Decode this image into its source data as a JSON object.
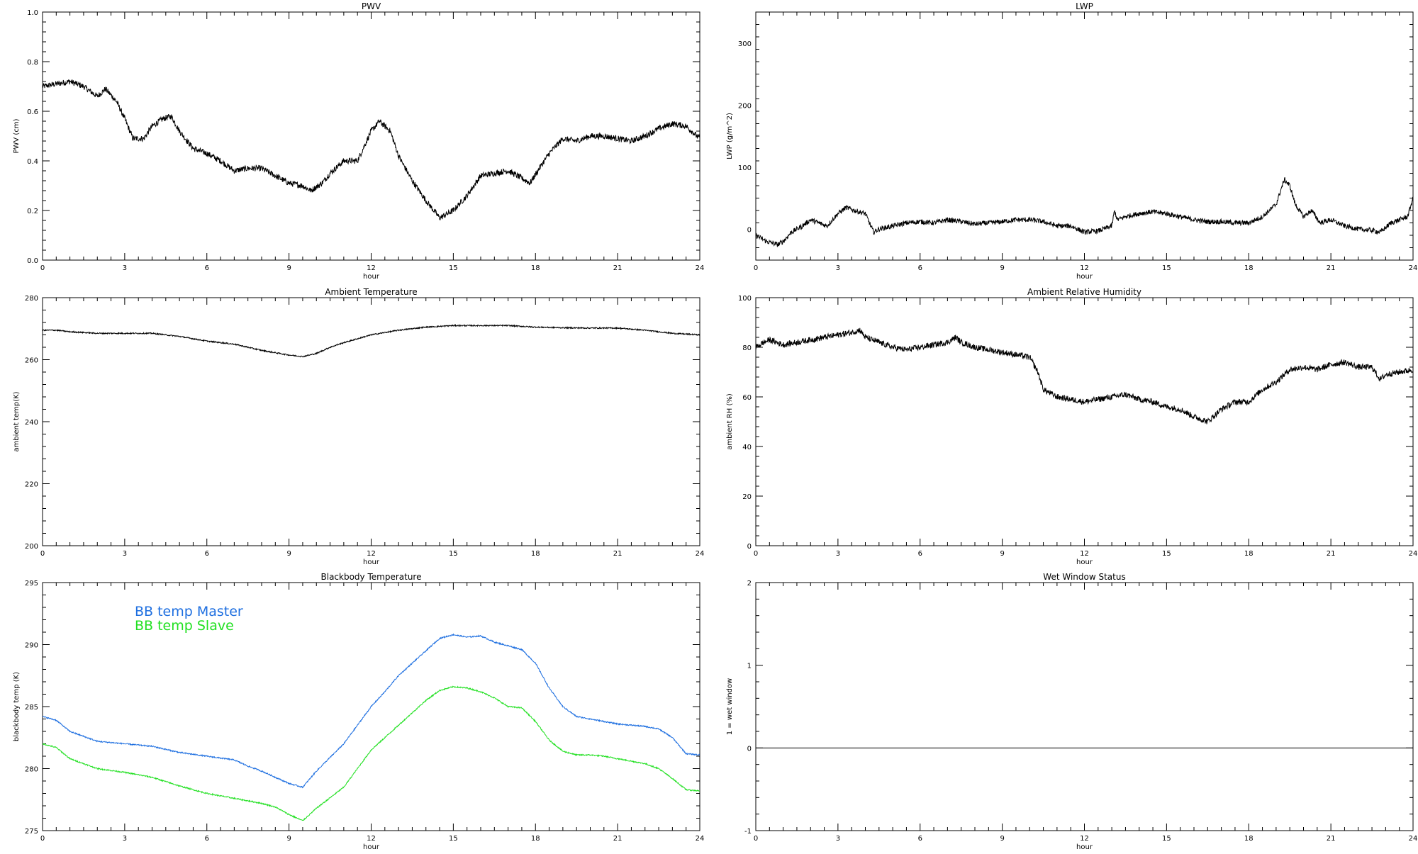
{
  "chart_data": [
    {
      "id": "pwv",
      "type": "line",
      "title": "PWV",
      "xlabel": "hour",
      "ylabel": "PWV (cm)",
      "xlim": [
        0,
        24
      ],
      "ylim": [
        0,
        1
      ],
      "xticks": [
        0,
        3,
        6,
        9,
        12,
        15,
        18,
        21,
        24
      ],
      "yticks": [
        0.0,
        0.2,
        0.4,
        0.6,
        0.8,
        1.0
      ],
      "ytick_labels": [
        "0.0",
        "0.2",
        "0.4",
        "0.6",
        "0.8",
        "1.0"
      ],
      "noise": 0.012,
      "series": [
        {
          "color": "#000000",
          "x": [
            0,
            0.5,
            1.0,
            1.5,
            2.0,
            2.3,
            2.7,
            3.0,
            3.3,
            3.7,
            4.0,
            4.4,
            4.7,
            5.0,
            5.5,
            6.0,
            6.5,
            7.0,
            7.5,
            8.0,
            8.5,
            9.0,
            9.5,
            9.8,
            10.2,
            10.5,
            11.0,
            11.5,
            12.0,
            12.3,
            12.7,
            13.0,
            13.5,
            14.0,
            14.5,
            15.0,
            15.5,
            16.0,
            16.5,
            17.0,
            17.5,
            17.8,
            18.2,
            18.5,
            19.0,
            19.5,
            20.0,
            20.5,
            21.0,
            21.5,
            22.0,
            22.5,
            23.0,
            23.5,
            24.0
          ],
          "y": [
            0.7,
            0.71,
            0.72,
            0.7,
            0.66,
            0.69,
            0.64,
            0.57,
            0.49,
            0.49,
            0.54,
            0.57,
            0.58,
            0.52,
            0.45,
            0.43,
            0.4,
            0.36,
            0.37,
            0.37,
            0.34,
            0.31,
            0.3,
            0.28,
            0.31,
            0.35,
            0.4,
            0.4,
            0.52,
            0.56,
            0.52,
            0.42,
            0.32,
            0.24,
            0.17,
            0.2,
            0.26,
            0.34,
            0.35,
            0.36,
            0.33,
            0.31,
            0.38,
            0.43,
            0.49,
            0.48,
            0.5,
            0.5,
            0.49,
            0.48,
            0.5,
            0.53,
            0.55,
            0.54,
            0.49
          ]
        }
      ]
    },
    {
      "id": "lwp",
      "type": "line",
      "title": "LWP",
      "xlabel": "hour",
      "ylabel": "LWP (g/m^2)",
      "xlim": [
        0,
        24
      ],
      "ylim": [
        -50,
        350
      ],
      "xticks": [
        0,
        3,
        6,
        9,
        12,
        15,
        18,
        21,
        24
      ],
      "yticks": [
        0,
        100,
        200,
        300
      ],
      "ytick_labels": [
        "0",
        "100",
        "200",
        "300"
      ],
      "noise": 4,
      "series": [
        {
          "color": "#000000",
          "x": [
            0,
            0.4,
            0.8,
            1.0,
            1.3,
            1.5,
            1.7,
            2.0,
            2.3,
            2.6,
            3.0,
            3.3,
            3.6,
            4.0,
            4.3,
            4.5,
            5.0,
            5.5,
            6.0,
            6.5,
            7.0,
            7.5,
            8.0,
            8.5,
            9.0,
            9.5,
            10.0,
            10.5,
            11.0,
            11.5,
            12.0,
            12.5,
            13.0,
            13.1,
            13.2,
            13.5,
            14.0,
            14.5,
            15.0,
            15.5,
            16.0,
            16.5,
            17.0,
            17.5,
            18.0,
            18.5,
            19.0,
            19.3,
            19.5,
            19.7,
            20.0,
            20.3,
            20.6,
            21.0,
            21.5,
            22.0,
            22.5,
            22.8,
            23.2,
            23.5,
            23.8,
            24.0
          ],
          "y": [
            -10,
            -20,
            -25,
            -20,
            -5,
            0,
            5,
            15,
            10,
            5,
            25,
            35,
            30,
            25,
            -5,
            0,
            5,
            10,
            12,
            10,
            15,
            12,
            8,
            10,
            12,
            15,
            15,
            12,
            5,
            5,
            -5,
            -3,
            5,
            30,
            15,
            20,
            25,
            28,
            25,
            20,
            15,
            12,
            12,
            10,
            10,
            20,
            40,
            80,
            70,
            40,
            20,
            30,
            10,
            15,
            5,
            0,
            -2,
            -5,
            10,
            15,
            20,
            50
          ]
        }
      ]
    },
    {
      "id": "ambient-temp",
      "type": "line",
      "title": "Ambient Temperature",
      "xlabel": "hour",
      "ylabel": "ambient temp(K)",
      "xlim": [
        0,
        24
      ],
      "ylim": [
        200,
        280
      ],
      "xticks": [
        0,
        3,
        6,
        9,
        12,
        15,
        18,
        21,
        24
      ],
      "yticks": [
        200,
        220,
        240,
        260,
        280
      ],
      "ytick_labels": [
        "200",
        "220",
        "240",
        "260",
        "280"
      ],
      "noise": 0.2,
      "series": [
        {
          "color": "#000000",
          "x": [
            0,
            0.5,
            1,
            2,
            3,
            4,
            5,
            6,
            7,
            8,
            9,
            9.5,
            10,
            10.5,
            11,
            12,
            13,
            14,
            15,
            16,
            17,
            18,
            19,
            20,
            21,
            22,
            23,
            24
          ],
          "y": [
            269.5,
            269.5,
            269.0,
            268.5,
            268.5,
            268.5,
            267.5,
            266.0,
            265.0,
            263.0,
            261.5,
            261.0,
            262.0,
            264.0,
            265.5,
            268.0,
            269.5,
            270.5,
            271.0,
            271.0,
            271.0,
            270.5,
            270.3,
            270.2,
            270.2,
            269.5,
            268.5,
            268.0
          ]
        }
      ]
    },
    {
      "id": "ambient-rh",
      "type": "line",
      "title": "Ambient Relative Humidity",
      "xlabel": "hour",
      "ylabel": "ambient RH (%)",
      "xlim": [
        0,
        24
      ],
      "ylim": [
        0,
        100
      ],
      "xticks": [
        0,
        3,
        6,
        9,
        12,
        15,
        18,
        21,
        24
      ],
      "yticks": [
        0,
        20,
        40,
        60,
        80,
        100
      ],
      "ytick_labels": [
        "0",
        "20",
        "40",
        "60",
        "80",
        "100"
      ],
      "noise": 1.2,
      "series": [
        {
          "color": "#000000",
          "x": [
            0,
            0.3,
            0.5,
            1,
            1.5,
            2,
            2.5,
            3,
            3.5,
            3.8,
            4,
            4.5,
            5,
            5.5,
            6,
            6.5,
            7,
            7.3,
            7.5,
            8,
            8.5,
            9,
            9.5,
            10,
            10.3,
            10.5,
            11,
            11.5,
            12,
            12.5,
            13,
            13.5,
            14,
            14.5,
            15,
            15.5,
            16,
            16.5,
            17,
            17.5,
            18,
            18.5,
            19,
            19.5,
            20,
            20.5,
            21,
            21.5,
            22,
            22.5,
            22.8,
            23,
            23.5,
            24
          ],
          "y": [
            80,
            82,
            83,
            81,
            82,
            83,
            84,
            85,
            86,
            87,
            84,
            82,
            80,
            79,
            80,
            81,
            82,
            84,
            82,
            80,
            79,
            78,
            77,
            76,
            70,
            63,
            60,
            59,
            58,
            59,
            60,
            61,
            59,
            58,
            56,
            55,
            52,
            50,
            55,
            58,
            58,
            63,
            66,
            71,
            72,
            71,
            73,
            74,
            72,
            72,
            67,
            69,
            70,
            71
          ]
        }
      ]
    },
    {
      "id": "blackbody-temp",
      "type": "line",
      "title": "Blackbody Temperature",
      "xlabel": "hour",
      "ylabel": "blackbody temp (K)",
      "xlim": [
        0,
        24
      ],
      "ylim": [
        275,
        295
      ],
      "xticks": [
        0,
        3,
        6,
        9,
        12,
        15,
        18,
        21,
        24
      ],
      "yticks": [
        275,
        280,
        285,
        290,
        295
      ],
      "ytick_labels": [
        "275",
        "280",
        "285",
        "290",
        "295"
      ],
      "noise": 0.05,
      "legend": "top-left",
      "series": [
        {
          "name": "BB temp Master",
          "color": "#1e6fe0",
          "x": [
            0,
            0.5,
            1,
            2,
            3,
            4,
            5,
            6,
            7,
            7.5,
            8,
            8.5,
            9,
            9.5,
            10,
            11,
            11.5,
            12,
            12.5,
            13,
            14,
            14.5,
            15,
            15.5,
            16,
            16.5,
            17,
            17.5,
            18,
            18.5,
            19,
            19.5,
            20,
            20.5,
            21,
            21.5,
            22,
            22.5,
            23,
            23.5,
            24
          ],
          "y": [
            284.2,
            283.9,
            283.0,
            282.2,
            282.0,
            281.8,
            281.3,
            281.0,
            280.7,
            280.2,
            279.8,
            279.3,
            278.8,
            278.5,
            279.8,
            282.0,
            283.5,
            285.0,
            286.2,
            287.5,
            289.5,
            290.5,
            290.8,
            290.6,
            290.7,
            290.2,
            289.9,
            289.6,
            288.5,
            286.5,
            285.0,
            284.2,
            284.0,
            283.8,
            283.6,
            283.5,
            283.4,
            283.2,
            282.5,
            281.2,
            281.1
          ]
        },
        {
          "name": "BB temp Slave",
          "color": "#22e022",
          "x": [
            0,
            0.5,
            1,
            2,
            3,
            4,
            5,
            6,
            7,
            7.5,
            8,
            8.5,
            9,
            9.5,
            10,
            11,
            11.5,
            12,
            12.5,
            13,
            14,
            14.5,
            15,
            15.5,
            16,
            16.5,
            17,
            17.5,
            18,
            18.5,
            19,
            19.5,
            20,
            20.5,
            21,
            21.5,
            22,
            22.5,
            23,
            23.5,
            24
          ],
          "y": [
            282.0,
            281.7,
            280.8,
            280.0,
            279.7,
            279.3,
            278.6,
            278.0,
            277.6,
            277.4,
            277.2,
            276.9,
            276.3,
            275.8,
            276.8,
            278.5,
            280.0,
            281.5,
            282.5,
            283.5,
            285.5,
            286.3,
            286.6,
            286.5,
            286.2,
            285.7,
            285.0,
            284.9,
            283.8,
            282.3,
            281.4,
            281.1,
            281.1,
            281.0,
            280.8,
            280.6,
            280.4,
            280.0,
            279.2,
            278.3,
            278.2
          ]
        }
      ]
    },
    {
      "id": "wet-window",
      "type": "line",
      "title": "Wet Window Status",
      "xlabel": "hour",
      "ylabel": "1 = wet window",
      "xlim": [
        0,
        24
      ],
      "ylim": [
        -1,
        2
      ],
      "xticks": [
        0,
        3,
        6,
        9,
        12,
        15,
        18,
        21,
        24
      ],
      "yticks": [
        -1,
        0,
        1,
        2
      ],
      "ytick_labels": [
        "-1",
        "0",
        "1",
        "2"
      ],
      "noise": 0,
      "series": [
        {
          "color": "#000000",
          "x": [
            0,
            24
          ],
          "y": [
            0,
            0
          ]
        }
      ]
    }
  ]
}
